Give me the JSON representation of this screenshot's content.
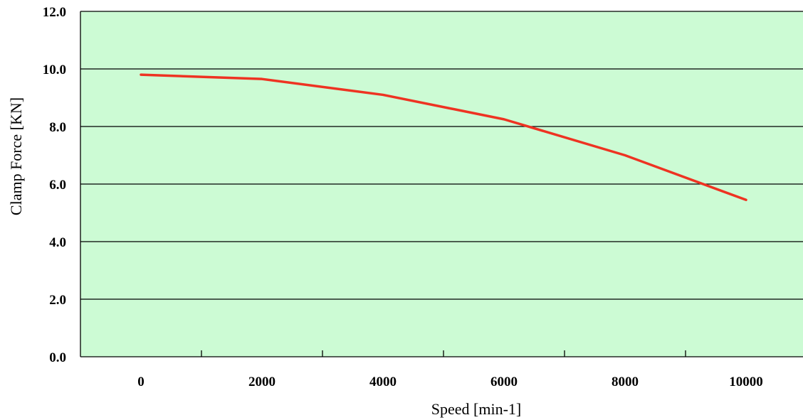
{
  "chart_data": {
    "type": "line",
    "title": "",
    "xlabel": "Speed [min-1]",
    "ylabel": "Clamp Force [KN]",
    "x": [
      0,
      2000,
      4000,
      6000,
      8000,
      10000
    ],
    "x_tick_labels": [
      "0",
      "2000",
      "4000",
      "6000",
      "8000",
      "10000"
    ],
    "y_tick_labels": [
      "0.0",
      "2.0",
      "4.0",
      "6.0",
      "8.0",
      "10.0",
      "12.0"
    ],
    "ylim": [
      0,
      12
    ],
    "grid": "horizontal",
    "legend": "none",
    "series": [
      {
        "values": [
          9.8,
          9.65,
          9.1,
          8.25,
          7.0,
          5.45
        ]
      }
    ],
    "colors": {
      "plot_background": "#ccfbd4",
      "line": "#ee3322",
      "grid": "#000000"
    }
  }
}
